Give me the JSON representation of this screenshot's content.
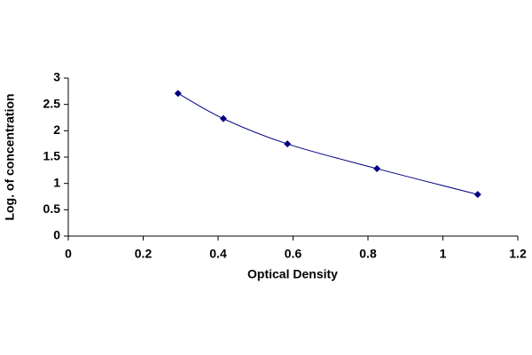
{
  "chart_data": {
    "type": "line",
    "x_label": "Optical Density",
    "y_label": "Log. of concentration",
    "x": [
      0.293,
      0.414,
      0.585,
      0.824,
      1.093
    ],
    "values": [
      2.71,
      2.23,
      1.75,
      1.28,
      0.79
    ],
    "color": "#000080",
    "marker": "diamond",
    "smooth": true,
    "xlim": [
      0,
      1.2
    ],
    "xticks": [
      0,
      0.2,
      0.4,
      0.6,
      0.8,
      1,
      1.2
    ],
    "ylim": [
      0,
      3
    ],
    "yticks": [
      0,
      0.5,
      1,
      1.5,
      2,
      2.5,
      3
    ],
    "grid": false
  }
}
